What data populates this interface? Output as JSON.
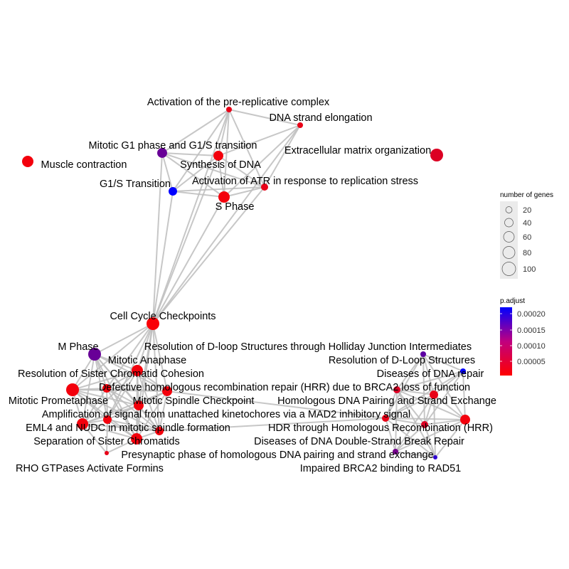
{
  "network": {
    "nodes": [
      {
        "name": "Activation of the pre-replicative complex",
        "genes": 20,
        "p_adjust": 2e-05
      },
      {
        "name": "DNA strand elongation",
        "genes": 20,
        "p_adjust": 2e-05
      },
      {
        "name": "Mitotic G1 phase and G1/S transition",
        "genes": 60,
        "p_adjust": 0.00013
      },
      {
        "name": "Synthesis of DNA",
        "genes": 60,
        "p_adjust": 1e-05
      },
      {
        "name": "Extracellular matrix organization",
        "genes": 100,
        "p_adjust": 3e-05
      },
      {
        "name": "Muscle contraction",
        "genes": 79,
        "p_adjust": 1e-05
      },
      {
        "name": "G1/S Transition",
        "genes": 44,
        "p_adjust": 0.00022
      },
      {
        "name": "Activation of ATR in response to replication stress",
        "genes": 31,
        "p_adjust": 2e-05
      },
      {
        "name": "S Phase",
        "genes": 79,
        "p_adjust": 1e-05
      },
      {
        "name": "Cell Cycle Checkpoints",
        "genes": 100,
        "p_adjust": 5e-06
      },
      {
        "name": "M Phase",
        "genes": 100,
        "p_adjust": 0.00013
      },
      {
        "name": "Mitotic Anaphase",
        "genes": 79,
        "p_adjust": 1e-05
      },
      {
        "name": "Resolution of Sister Chromatid Cohesion",
        "genes": 100,
        "p_adjust": 1e-05
      },
      {
        "name": "",
        "genes": 44,
        "p_adjust": 1e-05
      },
      {
        "name": "",
        "genes": 60,
        "p_adjust": 1e-05
      },
      {
        "name": "Mitotic Spindle Checkpoint",
        "genes": 60,
        "p_adjust": 1e-05
      },
      {
        "name": "Mitotic Prometaphase",
        "genes": 79,
        "p_adjust": 1e-05
      },
      {
        "name": "Amplification of signal from unattached kinetochores via a MAD2 inhibitory signal",
        "genes": 44,
        "p_adjust": 1e-05
      },
      {
        "name": "EML4 and NUDC in mitotic spindle formation",
        "genes": 44,
        "p_adjust": 1e-05
      },
      {
        "name": "Separation of Sister Chromatids",
        "genes": 79,
        "p_adjust": 1e-05
      },
      {
        "name": "RHO GTPases Activate Formins",
        "genes": 11,
        "p_adjust": 2e-05
      },
      {
        "name": "Resolution of D-loop Structures through Holliday Junction Intermediates",
        "genes": 20,
        "p_adjust": 0.00014
      },
      {
        "name": "Resolution of D-Loop Structures",
        "genes": 20,
        "p_adjust": 0.00022
      },
      {
        "name": "Defective homologous recombination repair (HRR) due to BRCA2 loss of function",
        "genes": 31,
        "p_adjust": 3e-05
      },
      {
        "name": "Diseases of DNA repair",
        "genes": 44,
        "p_adjust": 2e-05
      },
      {
        "name": "Homologous DNA Pairing and Strand Exchange",
        "genes": 31,
        "p_adjust": 2e-05
      },
      {
        "name": "HDR through Homologous Recombination (HRR)",
        "genes": 60,
        "p_adjust": 1e-05
      },
      {
        "name": "Diseases of DNA Double-Strand Break Repair",
        "genes": 31,
        "p_adjust": 3e-05
      },
      {
        "name": "Presynaptic phase of homologous DNA pairing and strand exchange",
        "genes": 20,
        "p_adjust": 0.00012
      },
      {
        "name": "Impaired BRCA2 binding to RAD51",
        "genes": 11,
        "p_adjust": 0.00018
      }
    ],
    "edges": [
      [
        0,
        1
      ],
      [
        0,
        2
      ],
      [
        0,
        3
      ],
      [
        0,
        6
      ],
      [
        0,
        7
      ],
      [
        0,
        8
      ],
      [
        1,
        3
      ],
      [
        1,
        7
      ],
      [
        1,
        8
      ],
      [
        2,
        3
      ],
      [
        2,
        6
      ],
      [
        2,
        8
      ],
      [
        2,
        7
      ],
      [
        3,
        6
      ],
      [
        3,
        7
      ],
      [
        3,
        8
      ],
      [
        6,
        8
      ],
      [
        6,
        7
      ],
      [
        7,
        8
      ],
      [
        9,
        0
      ],
      [
        9,
        2
      ],
      [
        9,
        3
      ],
      [
        9,
        6
      ],
      [
        9,
        7
      ],
      [
        9,
        8
      ],
      [
        9,
        1
      ],
      [
        9,
        10
      ],
      [
        9,
        11
      ],
      [
        9,
        12
      ],
      [
        9,
        13
      ],
      [
        9,
        14
      ],
      [
        9,
        15
      ],
      [
        9,
        17
      ],
      [
        9,
        18
      ],
      [
        9,
        19
      ],
      [
        10,
        11
      ],
      [
        10,
        12
      ],
      [
        10,
        13
      ],
      [
        10,
        14
      ],
      [
        10,
        15
      ],
      [
        10,
        16
      ],
      [
        10,
        17
      ],
      [
        10,
        18
      ],
      [
        10,
        19
      ],
      [
        11,
        12
      ],
      [
        11,
        13
      ],
      [
        11,
        14
      ],
      [
        11,
        15
      ],
      [
        11,
        16
      ],
      [
        11,
        17
      ],
      [
        11,
        18
      ],
      [
        11,
        19
      ],
      [
        12,
        13
      ],
      [
        12,
        14
      ],
      [
        12,
        15
      ],
      [
        12,
        16
      ],
      [
        12,
        17
      ],
      [
        12,
        18
      ],
      [
        12,
        19
      ],
      [
        13,
        14
      ],
      [
        13,
        15
      ],
      [
        13,
        16
      ],
      [
        13,
        17
      ],
      [
        13,
        18
      ],
      [
        13,
        19
      ],
      [
        14,
        15
      ],
      [
        14,
        16
      ],
      [
        14,
        17
      ],
      [
        14,
        18
      ],
      [
        14,
        19
      ],
      [
        15,
        16
      ],
      [
        15,
        17
      ],
      [
        15,
        18
      ],
      [
        15,
        19
      ],
      [
        16,
        17
      ],
      [
        16,
        18
      ],
      [
        16,
        19
      ],
      [
        17,
        18
      ],
      [
        17,
        19
      ],
      [
        18,
        19
      ],
      [
        20,
        19
      ],
      [
        20,
        16
      ],
      [
        20,
        17
      ],
      [
        21,
        22
      ],
      [
        21,
        23
      ],
      [
        21,
        24
      ],
      [
        21,
        25
      ],
      [
        21,
        26
      ],
      [
        21,
        27
      ],
      [
        22,
        23
      ],
      [
        22,
        24
      ],
      [
        22,
        25
      ],
      [
        22,
        26
      ],
      [
        22,
        27
      ],
      [
        23,
        24
      ],
      [
        23,
        25
      ],
      [
        23,
        26
      ],
      [
        23,
        27
      ],
      [
        23,
        28
      ],
      [
        23,
        29
      ],
      [
        24,
        25
      ],
      [
        24,
        26
      ],
      [
        24,
        27
      ],
      [
        24,
        28
      ],
      [
        24,
        29
      ],
      [
        25,
        26
      ],
      [
        25,
        27
      ],
      [
        25,
        28
      ],
      [
        25,
        29
      ],
      [
        26,
        27
      ],
      [
        26,
        28
      ],
      [
        26,
        29
      ],
      [
        27,
        28
      ],
      [
        27,
        29
      ],
      [
        28,
        29
      ],
      [
        14,
        25
      ],
      [
        18,
        25
      ]
    ]
  },
  "legend": {
    "size_title": "number of genes",
    "size_breaks": [
      "20",
      "40",
      "60",
      "80",
      "100"
    ],
    "color_title": "p.adjust",
    "color_breaks": [
      "0.00020",
      "0.00015",
      "0.00010",
      "0.00005"
    ],
    "color_low": "#FF0000",
    "color_high": "#0000FF",
    "edge_color": "#BDBDBD"
  }
}
